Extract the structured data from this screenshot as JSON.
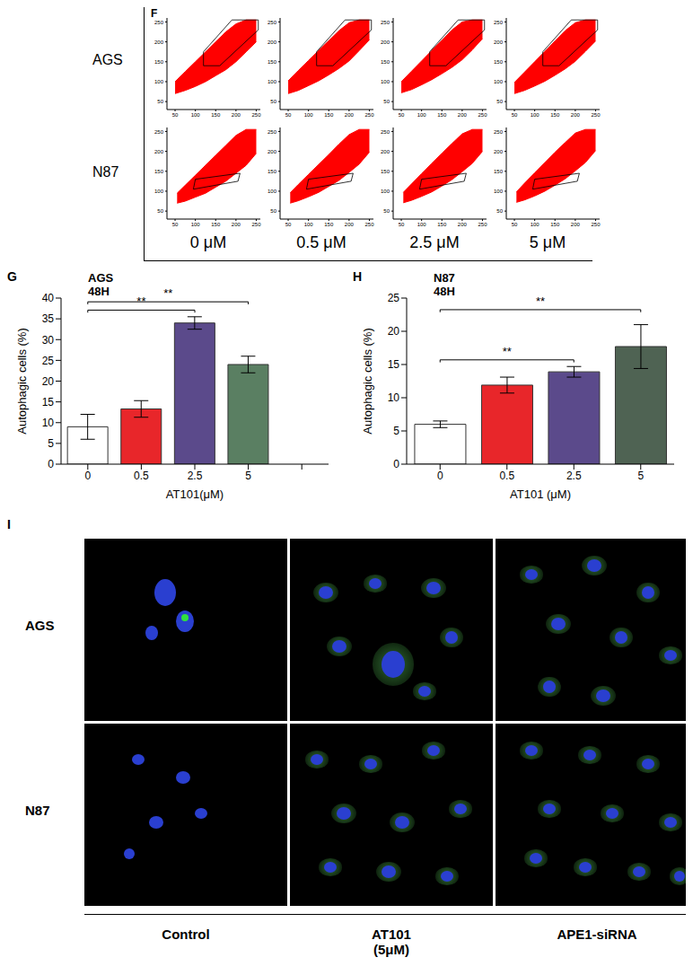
{
  "figure": {
    "panel_letters": [
      "F",
      "G",
      "H",
      "I"
    ],
    "f_rows": [
      "AGS",
      "N87"
    ],
    "f_columns": [
      "0 μM",
      "0.5 μM",
      "2.5 μM",
      "5 μM"
    ],
    "i_rows": [
      "AGS",
      "N87"
    ],
    "i_columns": [
      "Control",
      "AT101\n(5μM)",
      "APE1-siRNA"
    ]
  },
  "chart_data": [
    {
      "type": "density",
      "color": "#ff0000",
      "xlim": [
        30,
        260
      ],
      "ylim": [
        30,
        260
      ],
      "xticks": [
        50,
        100,
        150,
        200,
        250
      ],
      "yticks": [
        50,
        100,
        150,
        200,
        250
      ],
      "cloud": {
        "x": [
          50,
          75,
          100,
          125,
          150,
          175,
          200,
          225,
          250
        ],
        "low": [
          70,
          78,
          88,
          100,
          115,
          130,
          150,
          175,
          200
        ],
        "high": [
          100,
          125,
          150,
          175,
          200,
          225,
          245,
          255,
          255
        ]
      },
      "gate": {
        "x": [
          120,
          160,
          255,
          255,
          190,
          120,
          120
        ],
        "y": [
          140,
          140,
          230,
          255,
          255,
          175,
          140
        ]
      }
    },
    {
      "type": "density",
      "color": "#ff0000",
      "xlim": [
        30,
        260
      ],
      "ylim": [
        30,
        260
      ],
      "xticks": [
        50,
        100,
        150,
        200,
        250
      ],
      "yticks": [
        50,
        100,
        150,
        200,
        250
      ],
      "cloud": {
        "x": [
          50,
          75,
          100,
          125,
          150,
          175,
          200,
          225,
          250
        ],
        "low": [
          70,
          78,
          90,
          102,
          117,
          133,
          152,
          178,
          205
        ],
        "high": [
          102,
          128,
          153,
          178,
          203,
          228,
          248,
          255,
          255
        ]
      },
      "gate": {
        "x": [
          120,
          160,
          255,
          255,
          190,
          120,
          120
        ],
        "y": [
          140,
          140,
          230,
          255,
          255,
          175,
          140
        ]
      }
    },
    {
      "type": "density",
      "color": "#ff0000",
      "xlim": [
        30,
        260
      ],
      "ylim": [
        30,
        260
      ],
      "xticks": [
        50,
        100,
        150,
        200,
        250
      ],
      "yticks": [
        50,
        100,
        150,
        200,
        250
      ],
      "cloud": {
        "x": [
          50,
          75,
          100,
          125,
          150,
          175,
          200,
          225,
          250
        ],
        "low": [
          72,
          80,
          92,
          105,
          120,
          136,
          155,
          180,
          208
        ],
        "high": [
          100,
          126,
          152,
          178,
          204,
          230,
          250,
          255,
          255
        ]
      },
      "gate": {
        "x": [
          120,
          160,
          255,
          255,
          190,
          120,
          120
        ],
        "y": [
          140,
          140,
          230,
          255,
          255,
          175,
          140
        ]
      }
    },
    {
      "type": "density",
      "color": "#ff0000",
      "xlim": [
        30,
        260
      ],
      "ylim": [
        30,
        260
      ],
      "xticks": [
        50,
        100,
        150,
        200,
        250
      ],
      "yticks": [
        50,
        100,
        150,
        200,
        250
      ],
      "cloud": {
        "x": [
          50,
          75,
          100,
          125,
          150,
          175,
          200,
          225,
          250
        ],
        "low": [
          70,
          78,
          89,
          101,
          116,
          132,
          151,
          176,
          202
        ],
        "high": [
          98,
          124,
          150,
          176,
          202,
          228,
          248,
          255,
          255
        ]
      },
      "gate": {
        "x": [
          120,
          160,
          255,
          255,
          190,
          120,
          120
        ],
        "y": [
          140,
          140,
          230,
          255,
          255,
          175,
          140
        ]
      }
    },
    {
      "type": "density",
      "color": "#ff0000",
      "xlim": [
        30,
        260
      ],
      "ylim": [
        30,
        260
      ],
      "xticks": [
        50,
        100,
        150,
        200,
        250
      ],
      "yticks": [
        50,
        100,
        150,
        200,
        250
      ],
      "cloud": {
        "x": [
          55,
          75,
          100,
          125,
          150,
          175,
          200,
          225,
          250
        ],
        "low": [
          70,
          75,
          85,
          95,
          110,
          125,
          145,
          165,
          195
        ],
        "high": [
          95,
          115,
          140,
          165,
          190,
          215,
          240,
          255,
          255
        ]
      },
      "gate": {
        "x": [
          95,
          205,
          210,
          100,
          95
        ],
        "y": [
          105,
          125,
          145,
          130,
          105
        ]
      }
    },
    {
      "type": "density",
      "color": "#ff0000",
      "xlim": [
        30,
        260
      ],
      "ylim": [
        30,
        260
      ],
      "xticks": [
        50,
        100,
        150,
        200,
        250
      ],
      "yticks": [
        50,
        100,
        150,
        200,
        250
      ],
      "cloud": {
        "x": [
          55,
          75,
          100,
          125,
          150,
          175,
          200,
          225,
          250
        ],
        "low": [
          70,
          76,
          86,
          97,
          112,
          127,
          147,
          168,
          198
        ],
        "high": [
          96,
          117,
          142,
          167,
          192,
          218,
          242,
          255,
          255
        ]
      },
      "gate": {
        "x": [
          95,
          205,
          210,
          100,
          95
        ],
        "y": [
          105,
          125,
          145,
          130,
          105
        ]
      }
    },
    {
      "type": "density",
      "color": "#ff0000",
      "xlim": [
        30,
        260
      ],
      "ylim": [
        30,
        260
      ],
      "xticks": [
        50,
        100,
        150,
        200,
        250
      ],
      "yticks": [
        50,
        100,
        150,
        200,
        250
      ],
      "cloud": {
        "x": [
          55,
          75,
          100,
          125,
          150,
          175,
          200,
          225,
          250
        ],
        "low": [
          71,
          77,
          87,
          98,
          113,
          129,
          149,
          170,
          200
        ],
        "high": [
          97,
          118,
          144,
          170,
          195,
          220,
          244,
          255,
          255
        ]
      },
      "gate": {
        "x": [
          95,
          205,
          210,
          100,
          95
        ],
        "y": [
          105,
          125,
          145,
          130,
          105
        ]
      }
    },
    {
      "type": "density",
      "color": "#ff0000",
      "xlim": [
        30,
        260
      ],
      "ylim": [
        30,
        260
      ],
      "xticks": [
        50,
        100,
        150,
        200,
        250
      ],
      "yticks": [
        50,
        100,
        150,
        200,
        250
      ],
      "cloud": {
        "x": [
          55,
          75,
          100,
          125,
          150,
          175,
          200,
          225,
          250
        ],
        "low": [
          72,
          78,
          88,
          100,
          115,
          131,
          151,
          172,
          202
        ],
        "high": [
          98,
          120,
          146,
          172,
          198,
          222,
          246,
          255,
          255
        ]
      },
      "gate": {
        "x": [
          95,
          205,
          210,
          100,
          95
        ],
        "y": [
          105,
          125,
          145,
          130,
          105
        ]
      }
    },
    {
      "type": "bar",
      "title": "AGS 48H",
      "x_label": "AT101(μM)",
      "y_label": "Autophagic cells (%)",
      "categories": [
        "0",
        "0.5",
        "2.5",
        "5",
        null
      ],
      "values": [
        9,
        13.3,
        34,
        24,
        null
      ],
      "errors": [
        3,
        2,
        1.5,
        2,
        null
      ],
      "colors": [
        "#ffffff",
        "#e8262a",
        "#5b4a8b",
        "#5a7f62",
        "#ffffff"
      ],
      "ylim": [
        0,
        40
      ],
      "yticks": [
        0,
        5,
        10,
        15,
        20,
        25,
        30,
        35,
        40
      ],
      "annotations": [
        {
          "text": "**",
          "from": "0",
          "to": "2.5"
        },
        {
          "text": "**",
          "from": "0",
          "to": "5"
        }
      ]
    },
    {
      "type": "bar",
      "title": "N87 48H",
      "x_label": "AT101 (μM)",
      "y_label": "Autophagic cells (%)",
      "categories": [
        "0",
        "0.5",
        "2.5",
        "5"
      ],
      "values": [
        6,
        11.9,
        13.9,
        17.7
      ],
      "errors": [
        0.5,
        1.2,
        0.8,
        3.3
      ],
      "colors": [
        "#ffffff",
        "#e8262a",
        "#5b4a8b",
        "#4f6353"
      ],
      "ylim": [
        0,
        25
      ],
      "yticks": [
        0,
        5,
        10,
        15,
        20,
        25
      ],
      "annotations": [
        {
          "text": "**",
          "from": "0",
          "to": "2.5"
        },
        {
          "text": "**",
          "from": "0",
          "to": "5"
        }
      ]
    }
  ]
}
